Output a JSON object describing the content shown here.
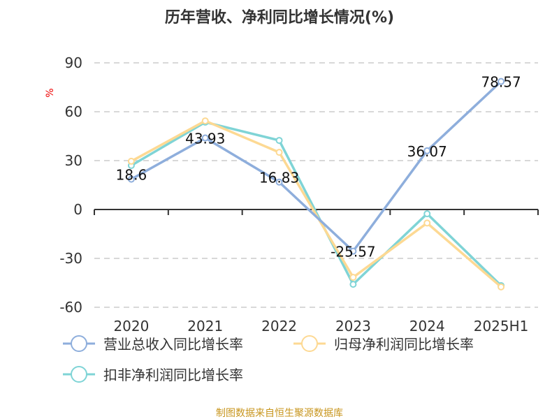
{
  "chart_data": {
    "type": "line",
    "title": "历年营收、净利同比增长情况(%)",
    "ylabel": "%",
    "ylim": [
      -60,
      90
    ],
    "yticks": [
      90,
      60,
      30,
      0,
      -30,
      -60
    ],
    "grid": true,
    "legend_position": "bottom",
    "categories": [
      "2020",
      "2021",
      "2022",
      "2023",
      "2024",
      "2025H1"
    ],
    "series": [
      {
        "name": "营业总收入同比增长率",
        "color": "#8eaedc",
        "values": [
          18.6,
          43.93,
          16.83,
          -25.57,
          36.07,
          78.57
        ],
        "labels": [
          "18.6",
          "43.93",
          "16.83",
          "-25.57",
          "36.07",
          "78.57"
        ]
      },
      {
        "name": "归母净利润同比增长率",
        "color": "#fdd993",
        "values": [
          29.6,
          54.4,
          35.1,
          -41.6,
          -8.3,
          -47.5
        ]
      },
      {
        "name": "扣非净利润同比增长率",
        "color": "#7fd4d6",
        "values": [
          27.0,
          53.6,
          42.4,
          -45.9,
          -2.6,
          -46.7
        ]
      }
    ]
  },
  "source": "制图数据来自恒生聚源数据库"
}
